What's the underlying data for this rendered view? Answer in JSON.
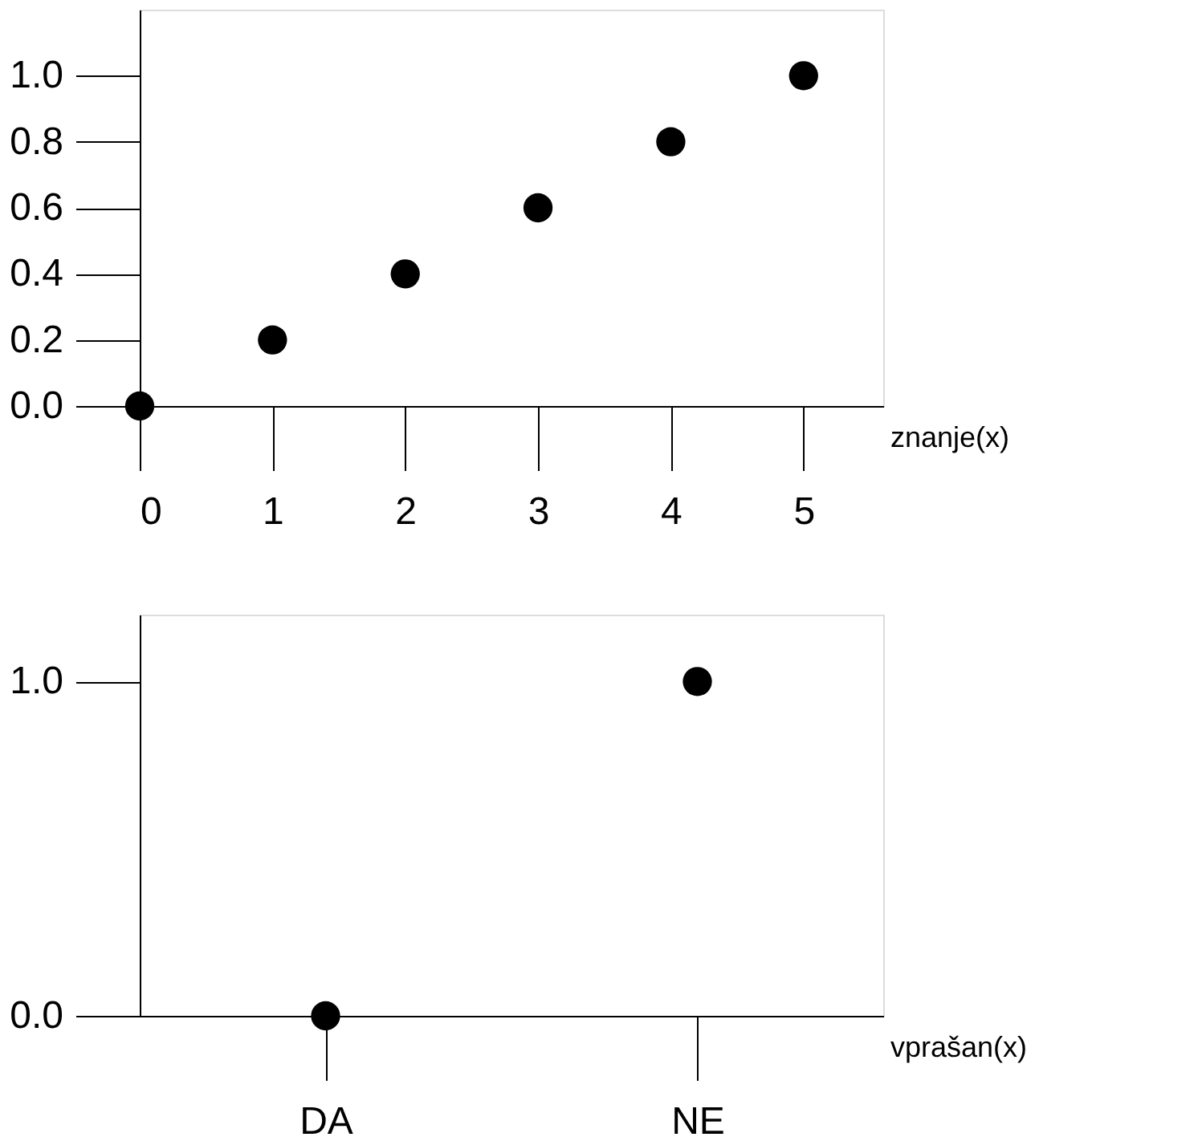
{
  "chart_data": [
    {
      "type": "scatter",
      "xlabel": "znanje(x)",
      "x": [
        0,
        1,
        2,
        3,
        4,
        5
      ],
      "values": [
        0,
        0.2,
        0.4,
        0.6,
        0.8,
        1.0
      ],
      "color": "#000000",
      "marker": "circle",
      "grid": false,
      "xlim": [
        0,
        5.6
      ],
      "xticks": [
        0,
        1,
        2,
        3,
        4,
        5
      ],
      "ylim": [
        0,
        1.2
      ],
      "yticks": [
        {
          "value": 0,
          "label": "0.0"
        },
        {
          "value": 0.2,
          "label": "0.2"
        },
        {
          "value": 0.4,
          "label": "0.4"
        },
        {
          "value": 0.6,
          "label": "0.6"
        },
        {
          "value": 0.8,
          "label": "0.8"
        },
        {
          "value": 1.0,
          "label": "1.0"
        }
      ]
    },
    {
      "type": "scatter",
      "xlabel": "vprašan(x)",
      "categories": [
        "DA",
        "NE"
      ],
      "values": [
        0,
        1
      ],
      "color": "#000000",
      "marker": "circle",
      "grid": false,
      "ylim": [
        0,
        1.2
      ],
      "yticks": [
        {
          "value": 0,
          "label": "0.0"
        },
        {
          "value": 1.0,
          "label": "1.0"
        }
      ]
    }
  ]
}
